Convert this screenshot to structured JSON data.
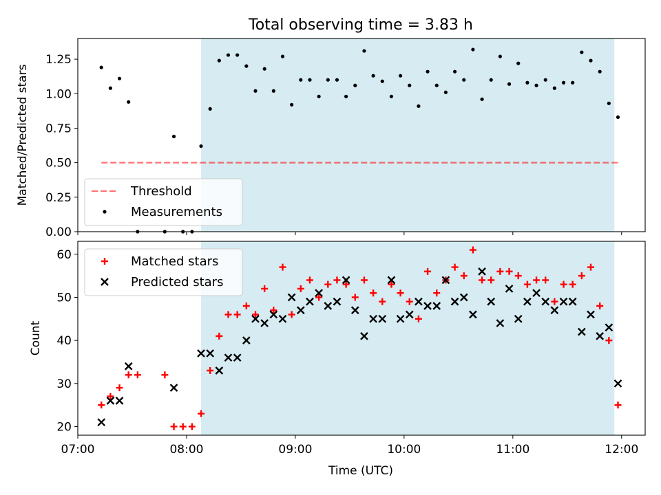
{
  "title": "Total observing time = 3.83 h",
  "colors": {
    "shade": "#add8e6",
    "threshold": "#ff0000",
    "matched": "#ff0000",
    "predicted": "#000000",
    "measurement": "#000000"
  },
  "x_axis": {
    "label": "Time (UTC)",
    "range": [
      "07:00",
      "12:13"
    ],
    "ticks": [
      "07:00",
      "08:00",
      "09:00",
      "10:00",
      "11:00",
      "12:00"
    ]
  },
  "chart_data": [
    {
      "type": "scatter",
      "panel": "top",
      "ylabel": "Matched/Predicted stars",
      "ylim": [
        0,
        1.4
      ],
      "yticks": [
        "0.00",
        "0.25",
        "0.50",
        "0.75",
        "1.00",
        "1.25"
      ],
      "shaded_x": [
        "08:08",
        "11:56"
      ],
      "threshold": {
        "name": "Threshold",
        "value": 0.5,
        "x": [
          "07:13",
          "11:59"
        ]
      },
      "legend": {
        "placement": "lower left",
        "entries": [
          "Threshold",
          "Measurements"
        ]
      },
      "series": [
        {
          "name": "Measurements",
          "x": [
            "07:13",
            "07:18",
            "07:23",
            "07:28",
            "07:33",
            "07:48",
            "07:53",
            "07:58",
            "08:03",
            "08:08",
            "08:13",
            "08:18",
            "08:23",
            "08:28",
            "08:33",
            "08:38",
            "08:43",
            "08:48",
            "08:53",
            "08:58",
            "09:03",
            "09:08",
            "09:13",
            "09:18",
            "09:23",
            "09:28",
            "09:33",
            "09:38",
            "09:43",
            "09:48",
            "09:53",
            "09:58",
            "10:03",
            "10:08",
            "10:13",
            "10:18",
            "10:23",
            "10:28",
            "10:33",
            "10:38",
            "10:43",
            "10:48",
            "10:53",
            "10:58",
            "11:03",
            "11:08",
            "11:13",
            "11:18",
            "11:23",
            "11:28",
            "11:33",
            "11:38",
            "11:43",
            "11:48",
            "11:53",
            "11:58"
          ],
          "y": [
            1.19,
            1.04,
            1.11,
            0.94,
            0.0,
            0.0,
            0.69,
            0.0,
            0.0,
            0.62,
            0.89,
            1.24,
            1.28,
            1.28,
            1.2,
            1.02,
            1.18,
            1.02,
            1.27,
            0.92,
            1.1,
            1.1,
            0.98,
            1.1,
            1.1,
            0.98,
            1.06,
            1.31,
            1.13,
            1.09,
            0.98,
            1.13,
            1.06,
            0.91,
            1.16,
            1.06,
            1.01,
            1.16,
            1.1,
            1.32,
            0.96,
            1.1,
            1.27,
            1.07,
            1.22,
            1.08,
            1.06,
            1.1,
            1.04,
            1.08,
            1.08,
            1.3,
            1.24,
            1.16,
            0.93,
            0.83
          ]
        }
      ]
    },
    {
      "type": "scatter",
      "panel": "bottom",
      "ylabel": "Count",
      "ylim": [
        18,
        63
      ],
      "yticks": [
        "20",
        "30",
        "40",
        "50",
        "60"
      ],
      "shaded_x": [
        "08:08",
        "11:56"
      ],
      "legend": {
        "placement": "upper left",
        "entries": [
          "Matched stars",
          "Predicted stars"
        ]
      },
      "series": [
        {
          "name": "Matched stars",
          "marker": "+",
          "x": [
            "07:13",
            "07:18",
            "07:23",
            "07:28",
            "07:33",
            "07:48",
            "07:53",
            "07:58",
            "08:03",
            "08:08",
            "08:13",
            "08:18",
            "08:23",
            "08:28",
            "08:33",
            "08:38",
            "08:43",
            "08:48",
            "08:53",
            "08:58",
            "09:03",
            "09:08",
            "09:13",
            "09:18",
            "09:23",
            "09:28",
            "09:33",
            "09:38",
            "09:43",
            "09:48",
            "09:53",
            "09:58",
            "10:03",
            "10:08",
            "10:13",
            "10:18",
            "10:23",
            "10:28",
            "10:33",
            "10:38",
            "10:43",
            "10:48",
            "10:53",
            "10:58",
            "11:03",
            "11:08",
            "11:13",
            "11:18",
            "11:23",
            "11:28",
            "11:33",
            "11:38",
            "11:43",
            "11:48",
            "11:53",
            "11:58"
          ],
          "y": [
            25,
            27,
            29,
            32,
            32,
            32,
            20,
            20,
            20,
            23,
            33,
            41,
            46,
            46,
            48,
            46,
            52,
            47,
            57,
            46,
            52,
            54,
            50,
            53,
            54,
            53,
            50,
            54,
            51,
            49,
            53,
            51,
            49,
            45,
            56,
            51,
            54,
            57,
            55,
            61,
            54,
            54,
            56,
            56,
            55,
            53,
            54,
            54,
            49,
            53,
            53,
            55,
            57,
            48,
            40,
            25
          ]
        },
        {
          "name": "Predicted stars",
          "marker": "x",
          "x": [
            "07:13",
            "07:18",
            "07:23",
            "07:28",
            "07:53",
            "08:08",
            "08:13",
            "08:18",
            "08:23",
            "08:28",
            "08:33",
            "08:38",
            "08:43",
            "08:48",
            "08:53",
            "08:58",
            "09:03",
            "09:08",
            "09:13",
            "09:18",
            "09:23",
            "09:28",
            "09:33",
            "09:38",
            "09:43",
            "09:48",
            "09:53",
            "09:58",
            "10:03",
            "10:08",
            "10:13",
            "10:18",
            "10:23",
            "10:28",
            "10:33",
            "10:38",
            "10:43",
            "10:48",
            "10:53",
            "10:58",
            "11:03",
            "11:08",
            "11:13",
            "11:18",
            "11:23",
            "11:28",
            "11:33",
            "11:38",
            "11:43",
            "11:48",
            "11:53",
            "11:58"
          ],
          "y": [
            21,
            26,
            26,
            34,
            29,
            37,
            37,
            33,
            36,
            36,
            40,
            45,
            44,
            46,
            45,
            50,
            47,
            49,
            51,
            48,
            49,
            54,
            47,
            41,
            45,
            45,
            54,
            45,
            46,
            49,
            48,
            48,
            54,
            49,
            50,
            46,
            56,
            49,
            44,
            52,
            45,
            49,
            51,
            49,
            47,
            49,
            49,
            42,
            46,
            41,
            43,
            30
          ]
        }
      ]
    }
  ]
}
